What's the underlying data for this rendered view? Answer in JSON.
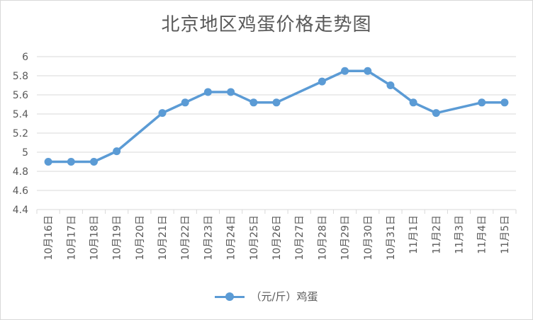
{
  "chart_data": {
    "type": "line",
    "title": "北京地区鸡蛋价格走势图",
    "categories": [
      "10月16日",
      "10月17日",
      "10月18日",
      "10月19日",
      "10月20日",
      "10月21日",
      "10月22日",
      "10月23日",
      "10月24日",
      "10月25日",
      "10月26日",
      "10月27日",
      "10月28日",
      "10月29日",
      "10月30日",
      "10月31日",
      "11月1日",
      "11月2日",
      "11月3日",
      "11月4日",
      "11月5日"
    ],
    "series": [
      {
        "name": "（元/斤）鸡蛋",
        "values": [
          4.9,
          4.9,
          4.9,
          5.01,
          null,
          5.41,
          5.52,
          5.63,
          5.63,
          5.52,
          5.52,
          null,
          5.74,
          5.85,
          5.85,
          5.7,
          5.52,
          5.41,
          null,
          5.52,
          5.52
        ],
        "color": "#5b9bd5"
      }
    ],
    "ylim": [
      4.4,
      6
    ],
    "yticks": [
      "4.4",
      "4.6",
      "4.8",
      "5",
      "5.2",
      "5.4",
      "5.6",
      "5.8",
      "6"
    ],
    "grid": true,
    "legend_position": "bottom",
    "gap_handling": "connect"
  },
  "colors": {
    "grid": "#d9d9d9",
    "axis_text": "#595959",
    "title": "#595959"
  }
}
